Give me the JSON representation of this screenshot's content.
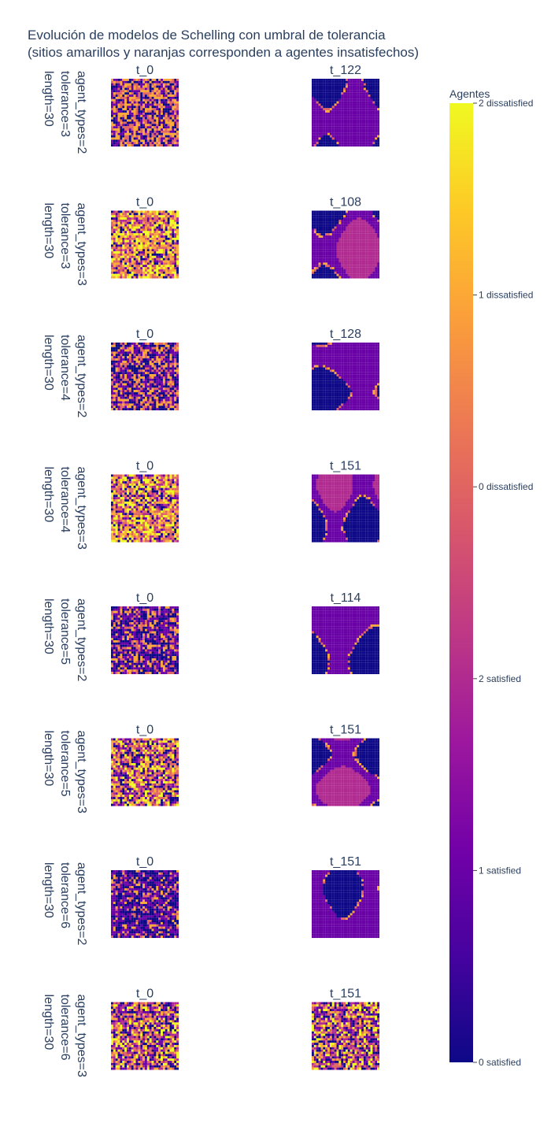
{
  "title": {
    "line1": "Evolución de modelos de Schelling con umbral de tolerancia",
    "line2": "(sitios amarillos y naranjas corresponden a agentes insatisfechos)"
  },
  "chart_data": {
    "type": "heatmap",
    "grid_size": 30,
    "colorscale": [
      "#0d0887",
      "#46039f",
      "#7201a8",
      "#9c179e",
      "#bd3786",
      "#d8576b",
      "#ed7953",
      "#fb9f3a",
      "#fdca26",
      "#f0f921"
    ],
    "colorbar": {
      "title": "Agentes",
      "range": [
        0,
        5
      ],
      "ticks": [
        {
          "value": 0,
          "label": "0 satisfied"
        },
        {
          "value": 1,
          "label": "1 satisfied"
        },
        {
          "value": 2,
          "label": "2 satisfied"
        },
        {
          "value": 3,
          "label": "0 dissatisfied"
        },
        {
          "value": 4,
          "label": "1 dissatisfied"
        },
        {
          "value": 5,
          "label": "2 dissatisfied"
        }
      ]
    },
    "rows": [
      {
        "row_label": [
          "agent_types=2",
          "tolerance=3",
          "length=30"
        ],
        "panels": [
          {
            "title": "t_0",
            "state": "initial_mixed"
          },
          {
            "title": "t_122",
            "state": "segregated"
          }
        ]
      },
      {
        "row_label": [
          "agent_types=3",
          "tolerance=3",
          "length=30"
        ],
        "panels": [
          {
            "title": "t_0",
            "state": "initial_mixed"
          },
          {
            "title": "t_108",
            "state": "segregated"
          }
        ]
      },
      {
        "row_label": [
          "agent_types=2",
          "tolerance=4",
          "length=30"
        ],
        "panels": [
          {
            "title": "t_0",
            "state": "initial_mixed"
          },
          {
            "title": "t_128",
            "state": "segregated"
          }
        ]
      },
      {
        "row_label": [
          "agent_types=3",
          "tolerance=4",
          "length=30"
        ],
        "panels": [
          {
            "title": "t_0",
            "state": "initial_mixed"
          },
          {
            "title": "t_151",
            "state": "segregated"
          }
        ]
      },
      {
        "row_label": [
          "agent_types=2",
          "tolerance=5",
          "length=30"
        ],
        "panels": [
          {
            "title": "t_0",
            "state": "initial_mixed"
          },
          {
            "title": "t_114",
            "state": "segregated"
          }
        ]
      },
      {
        "row_label": [
          "agent_types=3",
          "tolerance=5",
          "length=30"
        ],
        "panels": [
          {
            "title": "t_0",
            "state": "initial_mixed"
          },
          {
            "title": "t_151",
            "state": "segregated"
          }
        ]
      },
      {
        "row_label": [
          "agent_types=2",
          "tolerance=6",
          "length=30"
        ],
        "panels": [
          {
            "title": "t_0",
            "state": "initial_mixed"
          },
          {
            "title": "t_151",
            "state": "segregated"
          }
        ]
      },
      {
        "row_label": [
          "agent_types=3",
          "tolerance=6",
          "length=30"
        ],
        "panels": [
          {
            "title": "t_0",
            "state": "initial_mixed"
          },
          {
            "title": "t_151",
            "state": "unsettled"
          }
        ]
      }
    ]
  }
}
